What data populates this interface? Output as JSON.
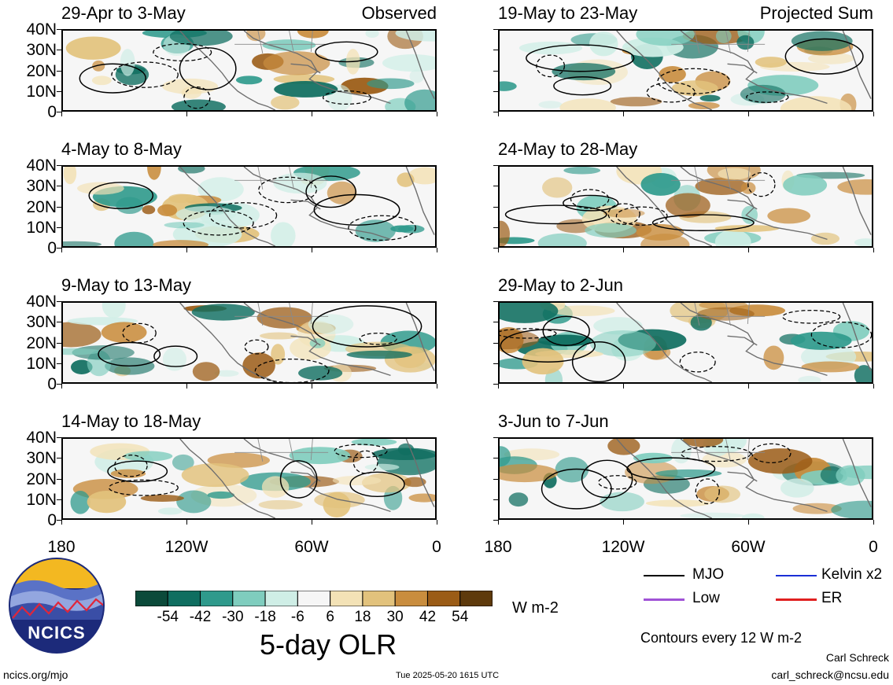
{
  "panels": [
    {
      "col": 0,
      "row": 0,
      "period": "29-Apr to 3-May",
      "tag": "Observed"
    },
    {
      "col": 0,
      "row": 1,
      "period": "4-May to 8-May",
      "tag": ""
    },
    {
      "col": 0,
      "row": 2,
      "period": "9-May to 13-May",
      "tag": ""
    },
    {
      "col": 0,
      "row": 3,
      "period": "14-May to 18-May",
      "tag": ""
    },
    {
      "col": 1,
      "row": 0,
      "period": "19-May to 23-May",
      "tag": "Projected Sum"
    },
    {
      "col": 1,
      "row": 1,
      "period": "24-May to 28-May",
      "tag": ""
    },
    {
      "col": 1,
      "row": 2,
      "period": "29-May to 2-Jun",
      "tag": ""
    },
    {
      "col": 1,
      "row": 3,
      "period": "3-Jun to 7-Jun",
      "tag": ""
    }
  ],
  "y_ticks": [
    "40N",
    "30N",
    "20N",
    "10N",
    "0"
  ],
  "x_ticks": [
    "180",
    "120W",
    "60W",
    "0"
  ],
  "colorbar": {
    "colors": [
      "#0b4a3a",
      "#0f6e60",
      "#2f9a8c",
      "#7fcdbe",
      "#cfeee6",
      "#f6f6f6",
      "#f3e2b6",
      "#e2c27c",
      "#c98d3e",
      "#9b5c16",
      "#5e3a0c"
    ],
    "labels": [
      "-54",
      "-42",
      "-30",
      "-18",
      "-6",
      "6",
      "18",
      "30",
      "42",
      "54"
    ],
    "units": "W m-2"
  },
  "title": "5-day OLR",
  "legend": [
    {
      "label": "MJO",
      "color": "#000000"
    },
    {
      "label": "Kelvin x2",
      "color": "#1a2fd6"
    },
    {
      "label": "Low",
      "color": "#a052d6"
    },
    {
      "label": "ER",
      "color": "#e02020"
    }
  ],
  "contour_note": "Contours every 12 W m-2",
  "logo_text": "NCICS",
  "website": "ncics.org/mjo",
  "timestamp": "Tue 2025-05-20 1615 UTC",
  "author": "Carl Schreck",
  "email": "carl_schreck@ncsu.edu"
}
